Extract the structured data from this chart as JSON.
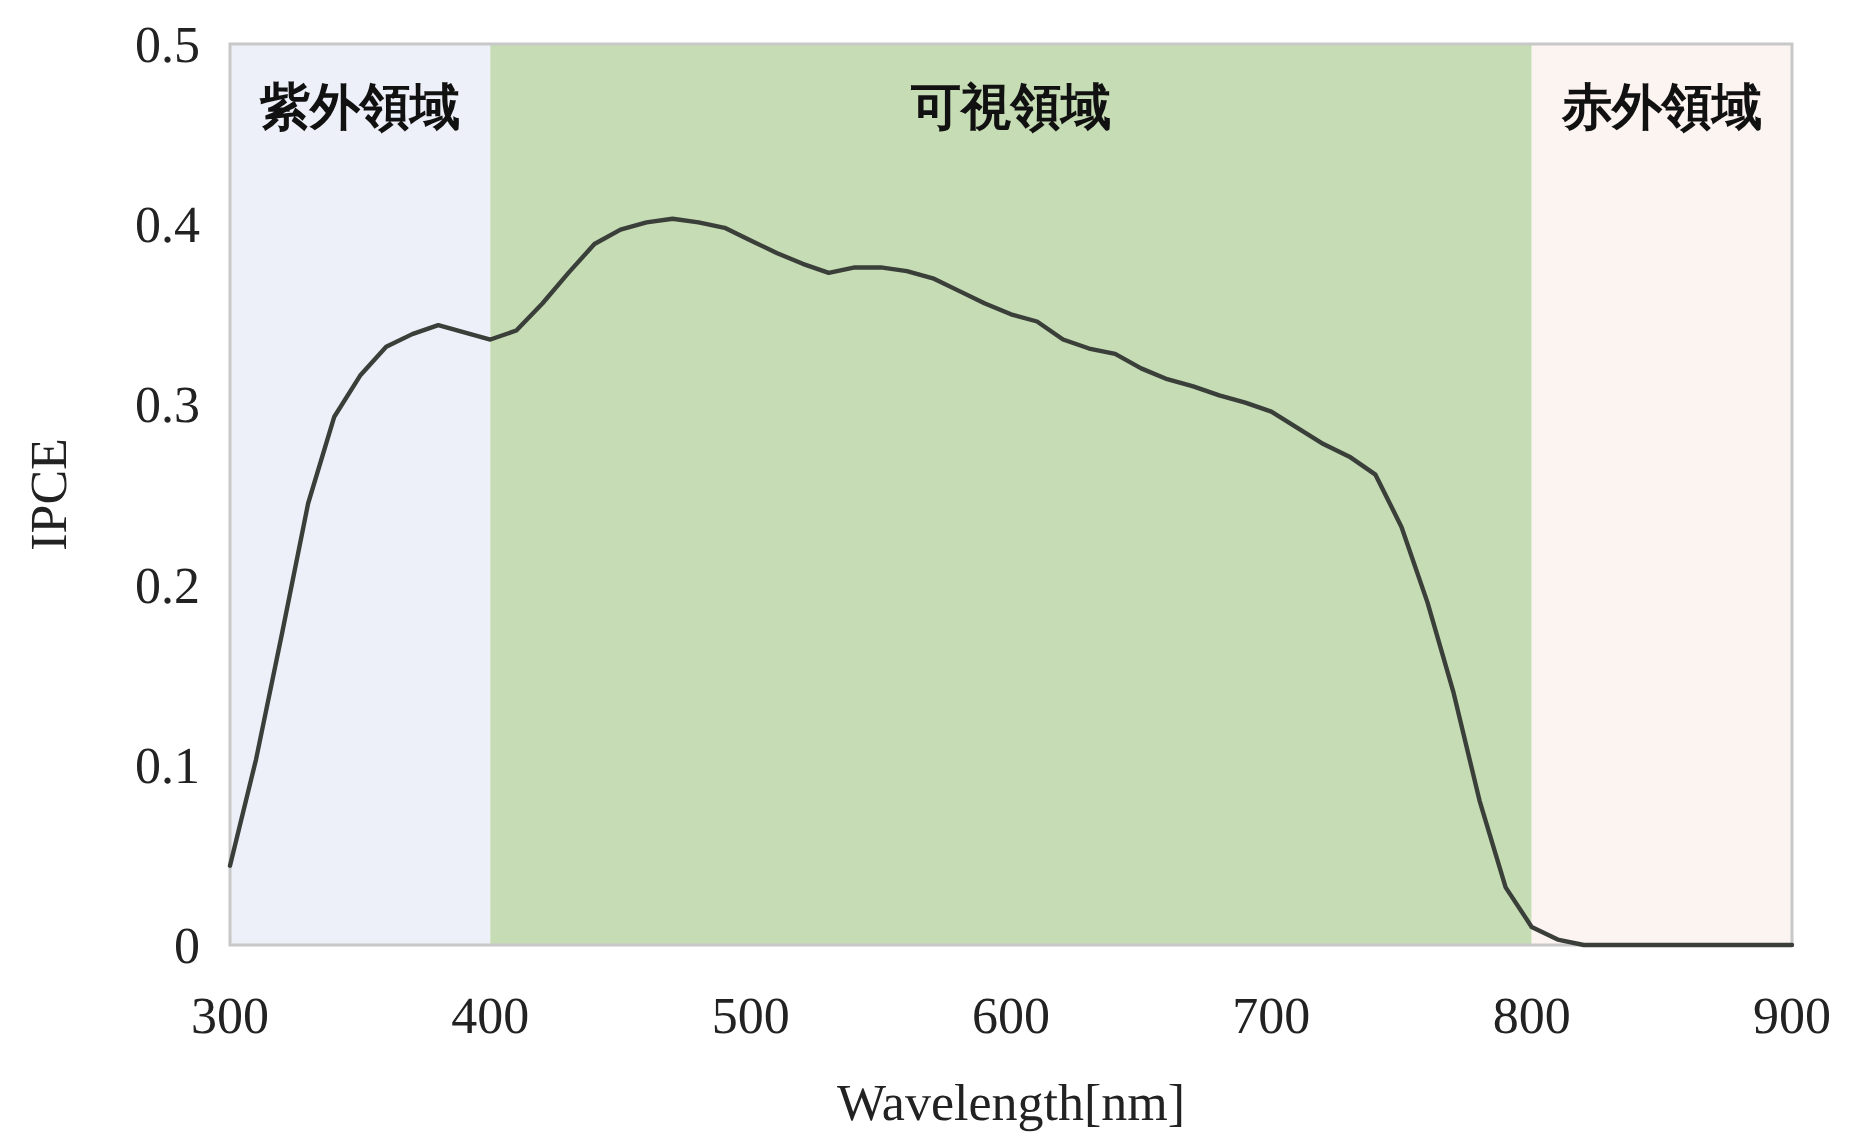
{
  "chart_data": {
    "type": "line",
    "xlabel": "Wavelength[nm]",
    "ylabel": "IPCE",
    "xlim": [
      300,
      900
    ],
    "ylim": [
      0,
      0.5
    ],
    "xticks": [
      300,
      400,
      500,
      600,
      700,
      800,
      900
    ],
    "yticks": [
      0,
      0.1,
      0.2,
      0.3,
      0.4,
      0.5
    ],
    "grid": false,
    "bands": [
      {
        "axis": "x",
        "from": 300,
        "to": 400,
        "label": "紫外領域",
        "color": "#edf0f8"
      },
      {
        "axis": "x",
        "from": 400,
        "to": 800,
        "label": "可視領域",
        "color": "#c5dcb4"
      },
      {
        "axis": "x",
        "from": 800,
        "to": 900,
        "label": "赤外領域",
        "color": "#fcf4f0"
      }
    ],
    "series": [
      {
        "color": "#3a3f3a",
        "x": [
          300,
          310,
          320,
          330,
          340,
          350,
          360,
          370,
          380,
          390,
          400,
          410,
          420,
          430,
          440,
          450,
          460,
          470,
          480,
          490,
          500,
          510,
          520,
          530,
          540,
          550,
          560,
          570,
          580,
          590,
          600,
          610,
          620,
          630,
          640,
          650,
          660,
          670,
          680,
          690,
          700,
          710,
          720,
          730,
          740,
          750,
          760,
          770,
          780,
          790,
          800,
          810,
          820,
          850,
          900
        ],
        "values": [
          0.044,
          0.103,
          0.173,
          0.245,
          0.293,
          0.316,
          0.332,
          0.339,
          0.344,
          0.34,
          0.336,
          0.341,
          0.356,
          0.373,
          0.389,
          0.397,
          0.401,
          0.403,
          0.401,
          0.398,
          0.391,
          0.384,
          0.378,
          0.373,
          0.376,
          0.376,
          0.374,
          0.37,
          0.363,
          0.356,
          0.35,
          0.346,
          0.336,
          0.331,
          0.328,
          0.32,
          0.314,
          0.31,
          0.305,
          0.301,
          0.296,
          0.287,
          0.278,
          0.271,
          0.261,
          0.232,
          0.19,
          0.14,
          0.08,
          0.032,
          0.01,
          0.003,
          0,
          0,
          0
        ]
      }
    ]
  }
}
